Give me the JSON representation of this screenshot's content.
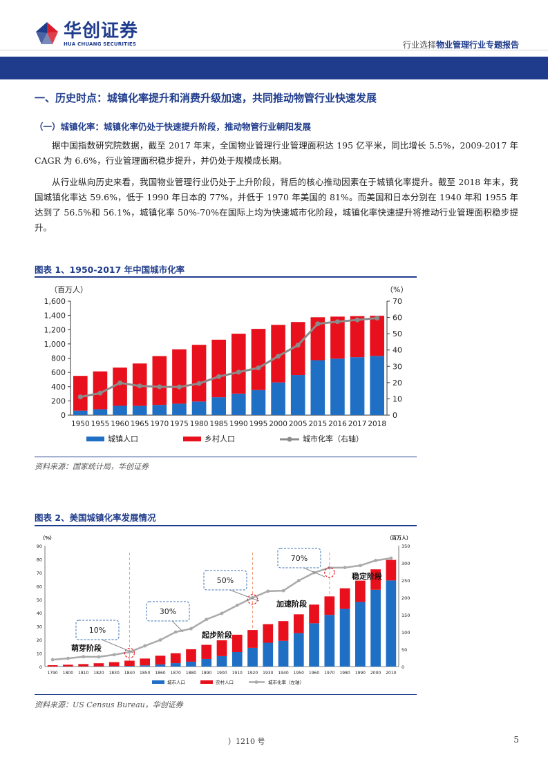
{
  "logo": {
    "cn": "华创证券",
    "en": "HUA CHUANG SECURITIES",
    "brand_color": "#1f3c8c",
    "accent_color": "#d81e2c"
  },
  "header": {
    "category": "行业选择",
    "report_title": "物业管理行业专题报告"
  },
  "section": {
    "title": "一、历史时点：城镇化率提升和消费升级加速，共同推动物管行业快速发展",
    "subtitle": "（一）城镇化率：城镇化率仍处于快速提升阶段，推动物管行业朝阳发展"
  },
  "paragraphs": [
    "据中国指数研究院数据，截至 2017 年末，全国物业管理行业管理面积达 195 亿平米，同比增长 5.5%，2009-2017 年 CAGR 为 6.6%，行业管理面积稳步提升，并仍处于规模成长期。",
    "从行业纵向历史来看，我国物业管理行业仍处于上升阶段，背后的核心推动因素在于城镇化率提升。截至 2018 年末，我国城镇化率达 59.6%，低于 1990 年日本的 77%，并低于 1970 年美国的 81%。而美国和日本分别在 1940 年和 1955 年达到了 56.5%和 56.1%，城镇化率 50%-70%在国际上均为快速城市化阶段，城镇化率快速提升将推动行业管理面积稳步提升。"
  ],
  "figure1": {
    "title": "图表 1、1950-2017 年中国城市化率",
    "source": "资料来源：国家统计局，华创证券"
  },
  "figure2": {
    "title": "图表 2、美国城镇化率发展情况",
    "source": "资料来源：US Census Bureau，华创证券"
  },
  "footer": {
    "text": "）1210 号",
    "page": "5"
  },
  "chart_data": [
    {
      "type": "bar",
      "stacked": true,
      "categories": [
        "1950",
        "1955",
        "1960",
        "1965",
        "1970",
        "1975",
        "1980",
        "1985",
        "1990",
        "1995",
        "2000",
        "2005",
        "2015",
        "2016",
        "2017",
        "2018"
      ],
      "series": [
        {
          "name": "城镇人口",
          "axis": "left",
          "color": "#1f6fc5",
          "values": [
            62,
            83,
            131,
            130,
            144,
            161,
            191,
            251,
            302,
            352,
            459,
            562,
            771,
            793,
            813,
            831
          ]
        },
        {
          "name": "乡村人口",
          "axis": "left",
          "color": "#e8101c",
          "values": [
            489,
            531,
            536,
            595,
            685,
            763,
            796,
            808,
            841,
            859,
            808,
            745,
            603,
            590,
            577,
            564
          ]
        },
        {
          "name": "城市化率（右轴）",
          "type": "line",
          "axis": "right",
          "color": "#8c8c8c",
          "values": [
            11.2,
            13.5,
            19.8,
            17.9,
            17.4,
            17.3,
            19.4,
            23.7,
            26.4,
            29.0,
            36.2,
            43.0,
            56.1,
            57.4,
            58.5,
            59.6
          ]
        }
      ],
      "left_axis": {
        "label": "（百万人）",
        "min": 0,
        "max": 1600,
        "ticks": [
          "0",
          "200",
          "400",
          "600",
          "800",
          "1,000",
          "1,200",
          "1,400",
          "1,600"
        ]
      },
      "right_axis": {
        "label": "（%）",
        "min": 0,
        "max": 70,
        "ticks": [
          "0",
          "10",
          "20",
          "30",
          "40",
          "50",
          "60",
          "70"
        ]
      },
      "legend_position": "bottom",
      "grid": false
    },
    {
      "type": "bar",
      "stacked": true,
      "categories": [
        "1790",
        "1800",
        "1810",
        "1820",
        "1830",
        "1840",
        "1850",
        "1860",
        "1870",
        "1880",
        "1890",
        "1900",
        "1910",
        "1920",
        "1930",
        "1940",
        "1950",
        "1960",
        "1970",
        "1980",
        "1990",
        "2000",
        "2010"
      ],
      "series": [
        {
          "name": "城市人口",
          "axis": "right",
          "color": "#1f6fc5",
          "values": [
            0.2,
            0.3,
            0.5,
            0.7,
            1.1,
            1.8,
            3.5,
            6.2,
            9.9,
            14.1,
            22.1,
            30.2,
            42.0,
            54.2,
            69.0,
            74.4,
            96.8,
            125.3,
            149.6,
            167.1,
            187.1,
            222.4,
            249.3
          ]
        },
        {
          "name": "农村人口",
          "axis": "right",
          "color": "#e8101c",
          "values": [
            3.7,
            5.0,
            6.7,
            8.9,
            11.7,
            15.2,
            19.7,
            25.2,
            28.7,
            36.0,
            40.8,
            45.8,
            50.2,
            51.6,
            53.8,
            57.2,
            54.5,
            54.1,
            53.6,
            59.5,
            61.7,
            59.1,
            59.5
          ]
        },
        {
          "name": "城市化率（左轴）",
          "type": "line",
          "axis": "left",
          "color": "#aaaaaa",
          "values": [
            5.1,
            6.1,
            7.3,
            7.2,
            8.8,
            10.8,
            15.4,
            19.8,
            25.7,
            28.2,
            35.1,
            39.6,
            45.6,
            51.2,
            56.1,
            56.5,
            64.0,
            69.9,
            73.6,
            73.7,
            75.2,
            79.0,
            80.7
          ]
        }
      ],
      "left_axis": {
        "label": "（%）",
        "min": 0,
        "max": 90,
        "ticks": [
          "0",
          "10",
          "20",
          "30",
          "40",
          "50",
          "60",
          "70",
          "80",
          "90"
        ]
      },
      "right_axis": {
        "label": "（百万人）",
        "min": 0,
        "max": 350,
        "ticks": [
          "0",
          "50",
          "100",
          "150",
          "200",
          "250",
          "300",
          "350"
        ]
      },
      "annotations": {
        "callouts": [
          "10%",
          "30%",
          "50%",
          "70%"
        ],
        "stages": [
          "萌芽阶段",
          "起步阶段",
          "加速阶段",
          "稳定阶段"
        ]
      },
      "legend_position": "bottom",
      "grid": false
    }
  ]
}
